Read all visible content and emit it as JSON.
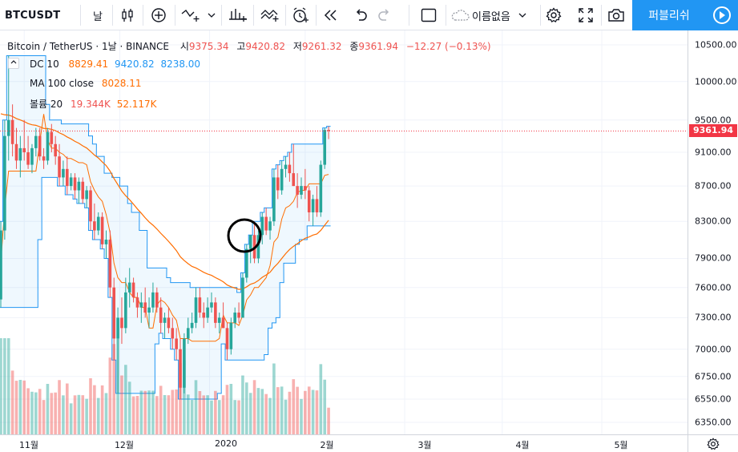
{
  "toolbar": {
    "symbol": "BTCUSDT",
    "interval": "날",
    "template_name": "이름없음",
    "publish_label": "퍼블리쉬"
  },
  "legend": {
    "title": "Bitcoin / TetherUS · 1날 · BINANCE",
    "open_label": "시",
    "open": "9375.34",
    "high_label": "고",
    "high": "9420.82",
    "low_label": "저",
    "low": "9261.32",
    "close_label": "종",
    "close": "9361.94",
    "change": "−12.27 (−0.13%)",
    "dc_label": "DC 10",
    "dc_mid": "8829.41",
    "dc_upper": "9420.82",
    "dc_lower": "8238.00",
    "ma_label": "MA 100 close",
    "ma_value": "8028.11",
    "vol_label": "볼륨 20",
    "vol_value": "19.344K",
    "vol_ma": "52.117K"
  },
  "colors": {
    "up": "#26a69a",
    "down": "#ef5350",
    "dc_band": "#2196f3",
    "dc_mid": "#ff6d00",
    "ma": "#ff6d00",
    "accent": "#2196f3",
    "last_price": "#f23645"
  },
  "price_axis": {
    "ticks": [
      "10500.00",
      "10000.00",
      "9500.00",
      "9100.00",
      "8700.00",
      "8300.00",
      "7900.00",
      "7600.00",
      "7300.00",
      "7000.00",
      "6750.00",
      "6550.00",
      "6350.00"
    ],
    "last_price": "9361.94"
  },
  "time_axis": {
    "ticks": [
      "11월",
      "12월",
      "2020",
      "2월",
      "3월",
      "4월",
      "5월"
    ]
  },
  "chart_data": {
    "type": "candlestick",
    "symbol": "BTCUSDT",
    "interval": "1D",
    "price_scale": "log",
    "y_ticks": [
      10500,
      10000,
      9500,
      9100,
      8700,
      8300,
      7900,
      7600,
      7300,
      7000,
      6750,
      6550,
      6350
    ],
    "x_ticks": [
      "11월",
      "12월",
      "2020",
      "2월",
      "3월",
      "4월",
      "5월"
    ],
    "candles": [
      {
        "o": 7480,
        "h": 8300,
        "l": 7400,
        "c": 8200
      },
      {
        "o": 8200,
        "h": 9500,
        "l": 8100,
        "c": 9300
      },
      {
        "o": 9300,
        "h": 10350,
        "l": 9000,
        "c": 9500
      },
      {
        "o": 9500,
        "h": 9700,
        "l": 9050,
        "c": 9200
      },
      {
        "o": 9200,
        "h": 9400,
        "l": 8900,
        "c": 9000
      },
      {
        "o": 9000,
        "h": 9300,
        "l": 8800,
        "c": 9150
      },
      {
        "o": 9150,
        "h": 9500,
        "l": 9000,
        "c": 9100
      },
      {
        "o": 9100,
        "h": 9300,
        "l": 8900,
        "c": 8950
      },
      {
        "o": 8950,
        "h": 9200,
        "l": 8850,
        "c": 9150
      },
      {
        "o": 9150,
        "h": 9400,
        "l": 9050,
        "c": 9300
      },
      {
        "o": 9300,
        "h": 9400,
        "l": 9000,
        "c": 9050
      },
      {
        "o": 9050,
        "h": 9150,
        "l": 8900,
        "c": 9000
      },
      {
        "o": 9000,
        "h": 9400,
        "l": 8950,
        "c": 9350
      },
      {
        "o": 9350,
        "h": 9450,
        "l": 9100,
        "c": 9200
      },
      {
        "o": 9200,
        "h": 9300,
        "l": 8950,
        "c": 9050
      },
      {
        "o": 9050,
        "h": 9200,
        "l": 8700,
        "c": 8800
      },
      {
        "o": 8800,
        "h": 9000,
        "l": 8700,
        "c": 8900
      },
      {
        "o": 8900,
        "h": 9050,
        "l": 8600,
        "c": 8700
      },
      {
        "o": 8700,
        "h": 8850,
        "l": 8650,
        "c": 8800
      },
      {
        "o": 8800,
        "h": 8850,
        "l": 8550,
        "c": 8650
      },
      {
        "o": 8650,
        "h": 8800,
        "l": 8500,
        "c": 8750
      },
      {
        "o": 8750,
        "h": 8800,
        "l": 8500,
        "c": 8550
      },
      {
        "o": 8550,
        "h": 8700,
        "l": 8450,
        "c": 8650
      },
      {
        "o": 8650,
        "h": 8700,
        "l": 8200,
        "c": 8300
      },
      {
        "o": 8300,
        "h": 8500,
        "l": 8100,
        "c": 8200
      },
      {
        "o": 8200,
        "h": 8400,
        "l": 8150,
        "c": 8350
      },
      {
        "o": 8350,
        "h": 8400,
        "l": 8000,
        "c": 8050
      },
      {
        "o": 8050,
        "h": 8200,
        "l": 7900,
        "c": 8100
      },
      {
        "o": 8100,
        "h": 8200,
        "l": 7500,
        "c": 7600
      },
      {
        "o": 7600,
        "h": 7700,
        "l": 6900,
        "c": 7100
      },
      {
        "o": 7100,
        "h": 7400,
        "l": 6600,
        "c": 7300
      },
      {
        "o": 7300,
        "h": 7500,
        "l": 7050,
        "c": 7200
      },
      {
        "o": 7200,
        "h": 7700,
        "l": 7150,
        "c": 7550
      },
      {
        "o": 7550,
        "h": 7800,
        "l": 7400,
        "c": 7650
      },
      {
        "o": 7650,
        "h": 7700,
        "l": 7450,
        "c": 7500
      },
      {
        "o": 7500,
        "h": 7550,
        "l": 7300,
        "c": 7400
      },
      {
        "o": 7400,
        "h": 7550,
        "l": 7250,
        "c": 7450
      },
      {
        "o": 7450,
        "h": 7600,
        "l": 7300,
        "c": 7350
      },
      {
        "o": 7350,
        "h": 7500,
        "l": 7200,
        "c": 7400
      },
      {
        "o": 7400,
        "h": 7650,
        "l": 7350,
        "c": 7550
      },
      {
        "o": 7550,
        "h": 7600,
        "l": 7350,
        "c": 7400
      },
      {
        "o": 7400,
        "h": 7500,
        "l": 7150,
        "c": 7250
      },
      {
        "o": 7250,
        "h": 7350,
        "l": 7100,
        "c": 7300
      },
      {
        "o": 7300,
        "h": 7400,
        "l": 7150,
        "c": 7200
      },
      {
        "o": 7200,
        "h": 7300,
        "l": 7000,
        "c": 7100
      },
      {
        "o": 7100,
        "h": 7200,
        "l": 6900,
        "c": 7000
      },
      {
        "o": 7000,
        "h": 7100,
        "l": 6550,
        "c": 6650
      },
      {
        "o": 6650,
        "h": 7150,
        "l": 6600,
        "c": 7100
      },
      {
        "o": 7100,
        "h": 7300,
        "l": 7050,
        "c": 7200
      },
      {
        "o": 7200,
        "h": 7350,
        "l": 7150,
        "c": 7250
      },
      {
        "o": 7250,
        "h": 7600,
        "l": 7200,
        "c": 7500
      },
      {
        "o": 7500,
        "h": 7600,
        "l": 7300,
        "c": 7350
      },
      {
        "o": 7350,
        "h": 7450,
        "l": 7200,
        "c": 7300
      },
      {
        "o": 7300,
        "h": 7500,
        "l": 7250,
        "c": 7400
      },
      {
        "o": 7400,
        "h": 7550,
        "l": 7350,
        "c": 7450
      },
      {
        "o": 7450,
        "h": 7500,
        "l": 7200,
        "c": 7250
      },
      {
        "o": 7250,
        "h": 7350,
        "l": 7150,
        "c": 7300
      },
      {
        "o": 7300,
        "h": 7450,
        "l": 7200,
        "c": 7200
      },
      {
        "o": 7200,
        "h": 7250,
        "l": 6900,
        "c": 7000
      },
      {
        "o": 7000,
        "h": 7300,
        "l": 6950,
        "c": 7250
      },
      {
        "o": 7250,
        "h": 7400,
        "l": 7200,
        "c": 7350
      },
      {
        "o": 7350,
        "h": 7450,
        "l": 7250,
        "c": 7300
      },
      {
        "o": 7300,
        "h": 7750,
        "l": 7300,
        "c": 7700
      },
      {
        "o": 7700,
        "h": 8050,
        "l": 7650,
        "c": 8000
      },
      {
        "o": 8000,
        "h": 8150,
        "l": 7850,
        "c": 8150
      },
      {
        "o": 8150,
        "h": 8300,
        "l": 7850,
        "c": 7900
      },
      {
        "o": 7900,
        "h": 8200,
        "l": 7850,
        "c": 8150
      },
      {
        "o": 8150,
        "h": 8400,
        "l": 8050,
        "c": 8350
      },
      {
        "o": 8350,
        "h": 8450,
        "l": 8150,
        "c": 8200
      },
      {
        "o": 8200,
        "h": 8350,
        "l": 8100,
        "c": 8300
      },
      {
        "o": 8300,
        "h": 8900,
        "l": 8250,
        "c": 8800
      },
      {
        "o": 8800,
        "h": 8950,
        "l": 8550,
        "c": 8650
      },
      {
        "o": 8650,
        "h": 9000,
        "l": 8600,
        "c": 8900
      },
      {
        "o": 8900,
        "h": 9050,
        "l": 8800,
        "c": 8950
      },
      {
        "o": 8950,
        "h": 9100,
        "l": 8750,
        "c": 8850
      },
      {
        "o": 8850,
        "h": 9200,
        "l": 8700,
        "c": 8700
      },
      {
        "o": 8700,
        "h": 8850,
        "l": 8450,
        "c": 8600
      },
      {
        "o": 8600,
        "h": 8800,
        "l": 8550,
        "c": 8700
      },
      {
        "o": 8700,
        "h": 8900,
        "l": 8550,
        "c": 8650
      },
      {
        "o": 8650,
        "h": 8700,
        "l": 8300,
        "c": 8400
      },
      {
        "o": 8400,
        "h": 8600,
        "l": 8250,
        "c": 8550
      },
      {
        "o": 8550,
        "h": 8700,
        "l": 8350,
        "c": 8400
      },
      {
        "o": 8400,
        "h": 9000,
        "l": 8350,
        "c": 8950
      },
      {
        "o": 8950,
        "h": 9400,
        "l": 8900,
        "c": 9375
      },
      {
        "o": 9375.34,
        "h": 9420.82,
        "l": 9261.32,
        "c": 9361.94
      }
    ],
    "volume_visible_last": 19344,
    "volume_ma20": 52117
  }
}
